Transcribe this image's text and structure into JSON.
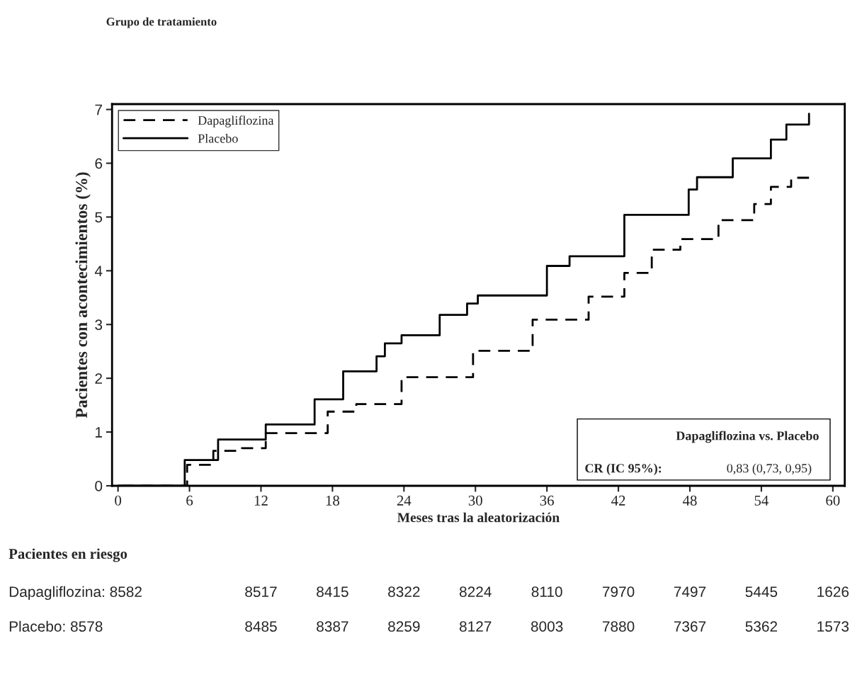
{
  "chart_data": {
    "type": "step",
    "title": "Grupo de tratamiento",
    "xlabel": "Meses tras la aleatorización",
    "ylabel": "Pacientes con acontecimientos (%)",
    "series": [
      {
        "name": "Dapagliflozina",
        "color": "#000000",
        "line_style": "dashed",
        "x": [
          0.3,
          5.8,
          8.0,
          10.4,
          12.4,
          17.6,
          20.0,
          23.8,
          29.8,
          34.8,
          39.5,
          42.5,
          44.8,
          47.2,
          50.4,
          53.4,
          54.8,
          56.5,
          58.0
        ],
        "values": [
          0,
          0.39,
          0.65,
          0.7,
          0.98,
          1.38,
          1.52,
          2.02,
          2.51,
          3.09,
          3.52,
          3.96,
          4.39,
          4.59,
          4.94,
          5.24,
          5.56,
          5.73,
          5.73
        ]
      },
      {
        "name": "Placebo",
        "color": "#000000",
        "line_style": "solid",
        "x": [
          0,
          5.6,
          8.4,
          12.4,
          16.5,
          18.9,
          21.7,
          22.4,
          23.8,
          27.0,
          29.3,
          30.2,
          36.0,
          37.9,
          42.5,
          47.9,
          48.6,
          51.6,
          54.8,
          56.1,
          58.0,
          58.0
        ],
        "values": [
          0,
          0.48,
          0.86,
          1.14,
          1.61,
          2.13,
          2.41,
          2.65,
          2.8,
          3.18,
          3.39,
          3.54,
          4.09,
          4.27,
          5.04,
          5.51,
          5.74,
          6.09,
          6.44,
          6.72,
          6.72,
          6.92
        ]
      }
    ],
    "xlim": [
      -0.5,
      61
    ],
    "ylim": [
      0,
      7.1
    ],
    "xticks": [
      0,
      6,
      12,
      18,
      24,
      30,
      36,
      42,
      48,
      54,
      60
    ],
    "yticks": [
      0,
      1,
      2,
      3,
      4,
      5,
      6,
      7
    ],
    "legend": "top left",
    "grid": false,
    "annotations": [
      "Dapagliflozina vs. Placebo",
      "CR (IC 95%):",
      "0,83 (0,73, 0,95)",
      "Pacientes en riesgo",
      "Dapagliflozina: 8582",
      "8517",
      "8415",
      "8322",
      "8224",
      "8110",
      "7970",
      "7497",
      "5445",
      "1626",
      "Placebo: 8578",
      "8485",
      "8387",
      "8259",
      "8127",
      "8003",
      "7880",
      "7367",
      "5362",
      "1573"
    ]
  }
}
